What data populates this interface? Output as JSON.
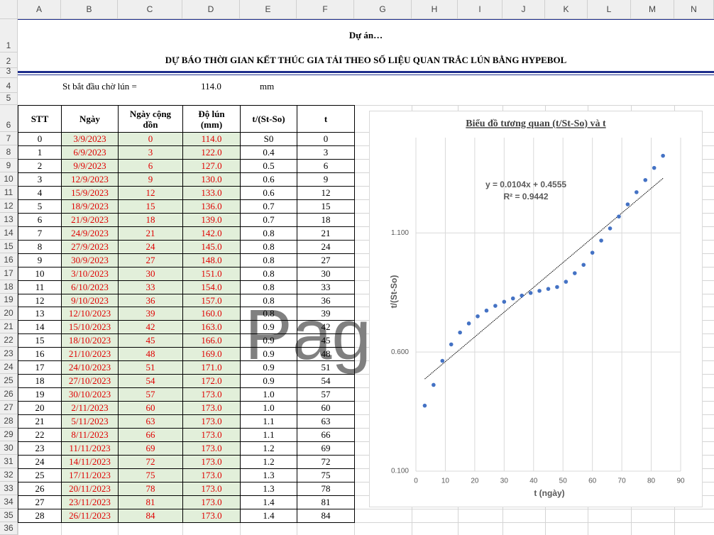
{
  "columns": [
    "A",
    "B",
    "C",
    "D",
    "E",
    "F",
    "G",
    "H",
    "I",
    "J",
    "K",
    "L",
    "M",
    "N"
  ],
  "row_numbers": [
    1,
    2,
    3,
    4,
    5,
    6,
    7,
    8,
    9,
    10,
    11,
    12,
    13,
    14,
    15,
    16,
    17,
    18,
    19,
    20,
    21,
    22,
    23,
    24,
    25,
    26,
    27,
    28,
    29,
    30,
    31,
    32,
    33,
    34,
    35,
    36
  ],
  "header": {
    "project": "Dự án…",
    "title": "DỰ BÁO THỜI GIAN KẾT THÚC GIA TẢI THEO SỐ LIỆU QUAN TRẮC LÚN BẰNG HYPEBOL"
  },
  "param": {
    "label": "St bắt đầu chờ lún =",
    "value": "114.0",
    "unit": "mm"
  },
  "watermark": "Pag",
  "table": {
    "header": [
      [
        "STT"
      ],
      [
        "Ngày"
      ],
      [
        "Ngày cộng",
        "dồn"
      ],
      [
        "Độ lún",
        "(mm)"
      ],
      [
        "t/(St-So)"
      ],
      [
        "t"
      ]
    ],
    "rows": [
      [
        "0",
        "3/9/2023",
        "0",
        "114.0",
        "S0",
        "0"
      ],
      [
        "1",
        "6/9/2023",
        "3",
        "122.0",
        "0.4",
        "3"
      ],
      [
        "2",
        "9/9/2023",
        "6",
        "127.0",
        "0.5",
        "6"
      ],
      [
        "3",
        "12/9/2023",
        "9",
        "130.0",
        "0.6",
        "9"
      ],
      [
        "4",
        "15/9/2023",
        "12",
        "133.0",
        "0.6",
        "12"
      ],
      [
        "5",
        "18/9/2023",
        "15",
        "136.0",
        "0.7",
        "15"
      ],
      [
        "6",
        "21/9/2023",
        "18",
        "139.0",
        "0.7",
        "18"
      ],
      [
        "7",
        "24/9/2023",
        "21",
        "142.0",
        "0.8",
        "21"
      ],
      [
        "8",
        "27/9/2023",
        "24",
        "145.0",
        "0.8",
        "24"
      ],
      [
        "9",
        "30/9/2023",
        "27",
        "148.0",
        "0.8",
        "27"
      ],
      [
        "10",
        "3/10/2023",
        "30",
        "151.0",
        "0.8",
        "30"
      ],
      [
        "11",
        "6/10/2023",
        "33",
        "154.0",
        "0.8",
        "33"
      ],
      [
        "12",
        "9/10/2023",
        "36",
        "157.0",
        "0.8",
        "36"
      ],
      [
        "13",
        "12/10/2023",
        "39",
        "160.0",
        "0.8",
        "39"
      ],
      [
        "14",
        "15/10/2023",
        "42",
        "163.0",
        "0.9",
        "42"
      ],
      [
        "15",
        "18/10/2023",
        "45",
        "166.0",
        "0.9",
        "45"
      ],
      [
        "16",
        "21/10/2023",
        "48",
        "169.0",
        "0.9",
        "48"
      ],
      [
        "17",
        "24/10/2023",
        "51",
        "171.0",
        "0.9",
        "51"
      ],
      [
        "18",
        "27/10/2023",
        "54",
        "172.0",
        "0.9",
        "54"
      ],
      [
        "19",
        "30/10/2023",
        "57",
        "173.0",
        "1.0",
        "57"
      ],
      [
        "20",
        "2/11/2023",
        "60",
        "173.0",
        "1.0",
        "60"
      ],
      [
        "21",
        "5/11/2023",
        "63",
        "173.0",
        "1.1",
        "63"
      ],
      [
        "22",
        "8/11/2023",
        "66",
        "173.0",
        "1.1",
        "66"
      ],
      [
        "23",
        "11/11/2023",
        "69",
        "173.0",
        "1.2",
        "69"
      ],
      [
        "24",
        "14/11/2023",
        "72",
        "173.0",
        "1.2",
        "72"
      ],
      [
        "25",
        "17/11/2023",
        "75",
        "173.0",
        "1.3",
        "75"
      ],
      [
        "26",
        "20/11/2023",
        "78",
        "173.0",
        "1.3",
        "78"
      ],
      [
        "27",
        "23/11/2023",
        "81",
        "173.0",
        "1.4",
        "81"
      ],
      [
        "28",
        "26/11/2023",
        "84",
        "173.0",
        "1.4",
        "84"
      ]
    ]
  },
  "chart_data": {
    "type": "scatter",
    "title": "Biểu đồ tương quan (t/St-So) và t",
    "x_label": "t (ngày)",
    "y_label": "t/(St-So)",
    "x": [
      3,
      6,
      9,
      12,
      15,
      18,
      21,
      24,
      27,
      30,
      33,
      36,
      39,
      42,
      45,
      48,
      51,
      54,
      57,
      60,
      63,
      66,
      69,
      72,
      75,
      78,
      81,
      84
    ],
    "values": [
      0.375,
      0.462,
      0.563,
      0.632,
      0.682,
      0.72,
      0.75,
      0.774,
      0.794,
      0.811,
      0.825,
      0.837,
      0.848,
      0.857,
      0.865,
      0.873,
      0.895,
      0.931,
      0.966,
      1.017,
      1.068,
      1.119,
      1.169,
      1.22,
      1.271,
      1.322,
      1.373,
      1.424
    ],
    "color": "#4472c4",
    "xlim": [
      0,
      90
    ],
    "xticks": [
      0,
      10,
      20,
      30,
      40,
      50,
      60,
      70,
      80,
      90
    ],
    "ylim": [
      0.1,
      1.5
    ],
    "yticks": [
      {
        "value": 0.1,
        "label": "0.100"
      },
      {
        "value": 0.6,
        "label": "0.600"
      },
      {
        "value": 1.1,
        "label": "1.100"
      }
    ],
    "grid": true,
    "trendline": {
      "slope": 0.0104,
      "intercept": 0.4555,
      "equation": "y = 0.0104x + 0.4555",
      "r2": "R² = 0.9442"
    }
  }
}
